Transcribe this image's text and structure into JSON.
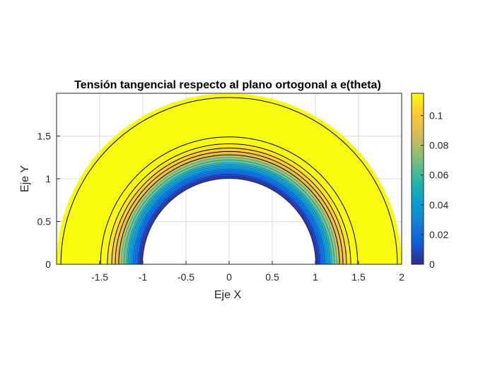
{
  "chart_data": {
    "type": "contour",
    "title": "Tensión tangencial respecto al plano ortogonal a e(theta)",
    "xlabel": "Eje X",
    "ylabel": "Eje Y",
    "xlim": [
      -2,
      2
    ],
    "ylim": [
      0,
      2
    ],
    "xticks": [
      -1.5,
      -1,
      -0.5,
      0,
      0.5,
      1,
      1.5,
      2
    ],
    "xtick_labels": [
      "-1.5",
      "-1",
      "-0.5",
      "0",
      "0.5",
      "1",
      "1.5",
      "2"
    ],
    "yticks": [
      0,
      0.5,
      1,
      1.5
    ],
    "ytick_labels": [
      "0",
      "0.5",
      "1",
      "1.5"
    ],
    "grid": true,
    "colormap": "parula",
    "colorbar": {
      "position": "right",
      "range": [
        0,
        0.115
      ],
      "ticks": [
        0,
        0.02,
        0.04,
        0.06,
        0.08,
        0.1
      ],
      "tick_labels": [
        "0",
        "0.02",
        "0.04",
        "0.06",
        "0.08",
        "0.1"
      ]
    },
    "domain": {
      "shape": "half-annulus",
      "inner_radius": 1.0,
      "outer_radius": 2.0,
      "theta_range_deg": [
        0,
        180
      ]
    },
    "contour_levels_radius": [
      1.01,
      1.03,
      1.05,
      1.07,
      1.09,
      1.11,
      1.13,
      1.15,
      1.17,
      1.19,
      1.22,
      1.25,
      1.28,
      1.32,
      1.36,
      1.41,
      1.49,
      1.95
    ]
  },
  "colors": {
    "parula_stops": [
      "#352a87",
      "#0f5cdd",
      "#1481d6",
      "#06a4ca",
      "#2eb7a4",
      "#87bf77",
      "#d1bb59",
      "#fec832",
      "#f9fb0e"
    ],
    "contour_line": "#000000",
    "grid": "#dcdcdc",
    "axis": "#262626"
  }
}
